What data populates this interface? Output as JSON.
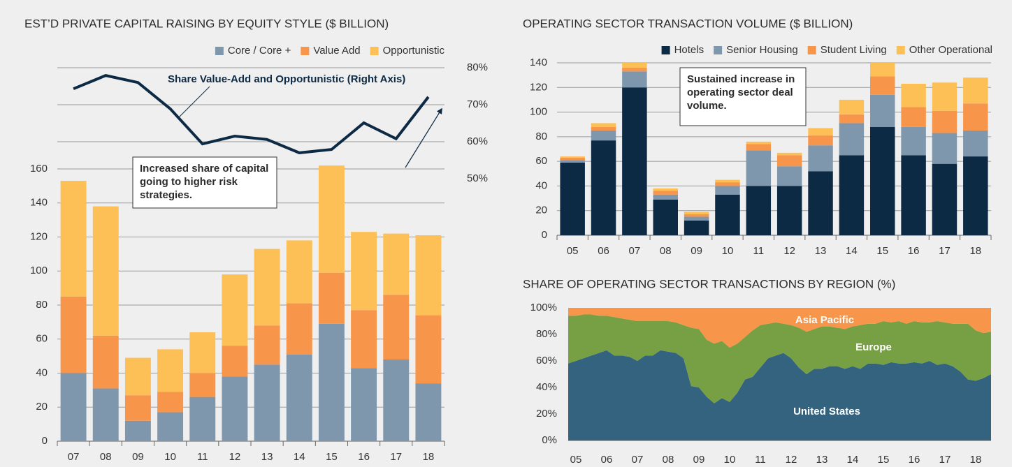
{
  "chart_data": [
    {
      "type": "bar",
      "title": "EST’D PRIVATE CAPITAL RAISING BY EQUITY STYLE  ($ BILLION)",
      "categories": [
        "07",
        "08",
        "09",
        "10",
        "11",
        "12",
        "13",
        "14",
        "15",
        "16",
        "17",
        "18"
      ],
      "series": [
        {
          "name": "Core / Core +",
          "color": "#7f97ad",
          "values": [
            40,
            31,
            12,
            17,
            26,
            38,
            45,
            51,
            69,
            43,
            48,
            34
          ]
        },
        {
          "name": "Value Add",
          "color": "#f7954a",
          "values": [
            45,
            31,
            15,
            12,
            14,
            18,
            23,
            30,
            30,
            34,
            38,
            40
          ]
        },
        {
          "name": "Opportunistic",
          "color": "#fdc057",
          "values": [
            68,
            76,
            22,
            25,
            24,
            42,
            45,
            37,
            63,
            46,
            36,
            47
          ]
        },
        {
          "name": "Share Value-Add and Opportunistic (Right Axis)",
          "type": "line",
          "axis": "y2",
          "color": "#0d2a45",
          "values": [
            74.3,
            77.9,
            76,
            68.9,
            59.4,
            61.5,
            60.6,
            57,
            57.9,
            65.1,
            60.8,
            72.1
          ]
        }
      ],
      "ylim": [
        0,
        160
      ],
      "yticks": [
        0,
        20,
        40,
        60,
        80,
        100,
        120,
        140,
        160
      ],
      "y2lim": [
        50,
        80
      ],
      "y2ticks": [
        {
          "value": 50,
          "label": "50%"
        },
        {
          "value": 60,
          "label": "60%"
        },
        {
          "value": 70,
          "label": "70%"
        },
        {
          "value": 80,
          "label": "80%"
        }
      ],
      "stacked": true,
      "grid": true,
      "legend": "top-right",
      "annotations": [
        "Increased share of capital going to higher risk strategies."
      ]
    },
    {
      "type": "bar",
      "title": "OPERATING SECTOR TRANSACTION VOLUME ($ BILLION)",
      "categories": [
        "05",
        "06",
        "07",
        "08",
        "09",
        "10",
        "11",
        "12",
        "13",
        "14",
        "15",
        "16",
        "17",
        "18"
      ],
      "series": [
        {
          "name": "Hotels",
          "color": "#0d2a45",
          "values": [
            59,
            77,
            120,
            29,
            12,
            33,
            40,
            40,
            52,
            65,
            88,
            65,
            58,
            64
          ]
        },
        {
          "name": "Senior Housing",
          "color": "#7f97ad",
          "values": [
            2,
            8,
            13,
            4,
            3,
            7,
            29,
            16,
            21,
            26,
            26,
            23,
            25,
            21
          ]
        },
        {
          "name": "Student Living",
          "color": "#f7954a",
          "values": [
            2,
            3,
            3,
            3,
            2,
            3,
            5,
            9,
            8,
            7,
            15,
            16,
            18,
            22
          ]
        },
        {
          "name": "Other Operational",
          "color": "#fdc057",
          "values": [
            1,
            3,
            4,
            2,
            2,
            2,
            2,
            2,
            6,
            12,
            11,
            19,
            23,
            21
          ]
        }
      ],
      "ylim": [
        0,
        140
      ],
      "yticks": [
        0,
        20,
        40,
        60,
        80,
        100,
        120,
        140
      ],
      "stacked": true,
      "grid": true,
      "legend": "top-right",
      "annotations": [
        "Sustained increase in operating sector deal volume."
      ]
    },
    {
      "type": "area",
      "title": "SHARE OF OPERATING SECTOR TRANSACTIONS BY REGION (%)",
      "categories": [
        null,
        "05",
        null,
        null,
        null,
        "06",
        null,
        null,
        null,
        "07",
        null,
        null,
        null,
        "08",
        null,
        null,
        null,
        "09",
        null,
        null,
        null,
        "10",
        null,
        null,
        null,
        "11",
        null,
        null,
        null,
        "12",
        null,
        null,
        null,
        "13",
        null,
        null,
        null,
        "14",
        null,
        null,
        null,
        "15",
        null,
        null,
        null,
        "16",
        null,
        null,
        null,
        "17",
        null,
        null,
        null,
        "18",
        null,
        null
      ],
      "series": [
        {
          "name": "United States",
          "color": "#34637f",
          "values": [
            58,
            60,
            62,
            64,
            66,
            68,
            64,
            64,
            63,
            60,
            64,
            64,
            68,
            67,
            66,
            62,
            41,
            40,
            33,
            28,
            32,
            29,
            36,
            46,
            48,
            55,
            62,
            64,
            66,
            62,
            55,
            50,
            54,
            54,
            56,
            56,
            54,
            56,
            54,
            58,
            58,
            57,
            59,
            58,
            58,
            59,
            58,
            60,
            57,
            58,
            56,
            52,
            46,
            45,
            47,
            50
          ]
        },
        {
          "name": "Europe",
          "color": "#76a043",
          "values": [
            36,
            34,
            33,
            31,
            28,
            26,
            29,
            28,
            28,
            30,
            26,
            26,
            22,
            23,
            23,
            25,
            44,
            44,
            43,
            45,
            43,
            41,
            37,
            32,
            35,
            32,
            26,
            25,
            22,
            25,
            30,
            32,
            30,
            32,
            30,
            29,
            30,
            30,
            33,
            30,
            30,
            33,
            30,
            32,
            30,
            31,
            31,
            29,
            33,
            31,
            32,
            36,
            42,
            38,
            34,
            32
          ]
        },
        {
          "name": "Asia Pacific",
          "color": "#f7954a",
          "values": [
            6,
            6,
            5,
            5,
            6,
            6,
            7,
            8,
            9,
            10,
            10,
            10,
            10,
            10,
            11,
            13,
            15,
            16,
            24,
            27,
            25,
            30,
            27,
            22,
            17,
            13,
            12,
            11,
            12,
            13,
            15,
            18,
            16,
            14,
            14,
            15,
            16,
            14,
            13,
            12,
            12,
            10,
            11,
            10,
            12,
            10,
            11,
            11,
            10,
            11,
            12,
            12,
            12,
            17,
            19,
            18
          ]
        }
      ],
      "ylim": [
        0,
        100
      ],
      "yticks": [
        {
          "value": 0,
          "label": "0%"
        },
        {
          "value": 20,
          "label": "20%"
        },
        {
          "value": 40,
          "label": "40%"
        },
        {
          "value": 60,
          "label": "60%"
        },
        {
          "value": 80,
          "label": "80%"
        },
        {
          "value": 100,
          "label": "100%"
        }
      ],
      "stacked": true,
      "grid": false
    }
  ]
}
